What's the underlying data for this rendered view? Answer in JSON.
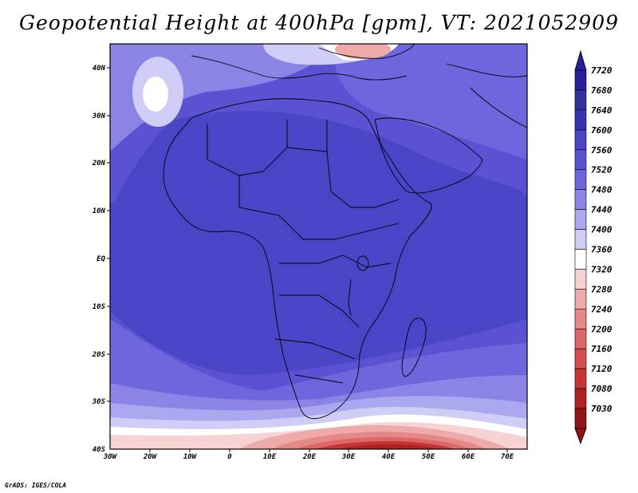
{
  "title": "Geopotential Height at 400hPa [gpm], VT: 2021052909",
  "credit": "GrADS: IGES/COLA",
  "map": {
    "lat_labels": [
      "40N",
      "30N",
      "20N",
      "10N",
      "EQ",
      "10S",
      "20S",
      "30S",
      "40S"
    ],
    "lon_labels": [
      "30W",
      "20W",
      "10W",
      "0",
      "10E",
      "20E",
      "30E",
      "40E",
      "50E",
      "60E",
      "70E"
    ]
  },
  "colorbar": {
    "labels": [
      "7720",
      "7680",
      "7640",
      "7600",
      "7560",
      "7520",
      "7480",
      "7440",
      "7400",
      "7360",
      "7320",
      "7280",
      "7240",
      "7200",
      "7160",
      "7120",
      "7080",
      "7030"
    ],
    "colors": [
      "#2a1f9a",
      "#32309e",
      "#3a33b0",
      "#4a44c6",
      "#5a52d2",
      "#6d66dc",
      "#8b84e6",
      "#aca8ef",
      "#cfcdf6",
      "#ffffff",
      "#f6d2d2",
      "#eeaaaa",
      "#e58888",
      "#dd6666",
      "#d44c4c",
      "#c43636",
      "#b02222",
      "#901414"
    ]
  },
  "colors": {
    "deep": "#4a44c6",
    "mid": "#5a52d2",
    "light": "#8b84e6",
    "pale": "#cfcdf6",
    "white": "#ffffff",
    "red": "#c43636"
  }
}
